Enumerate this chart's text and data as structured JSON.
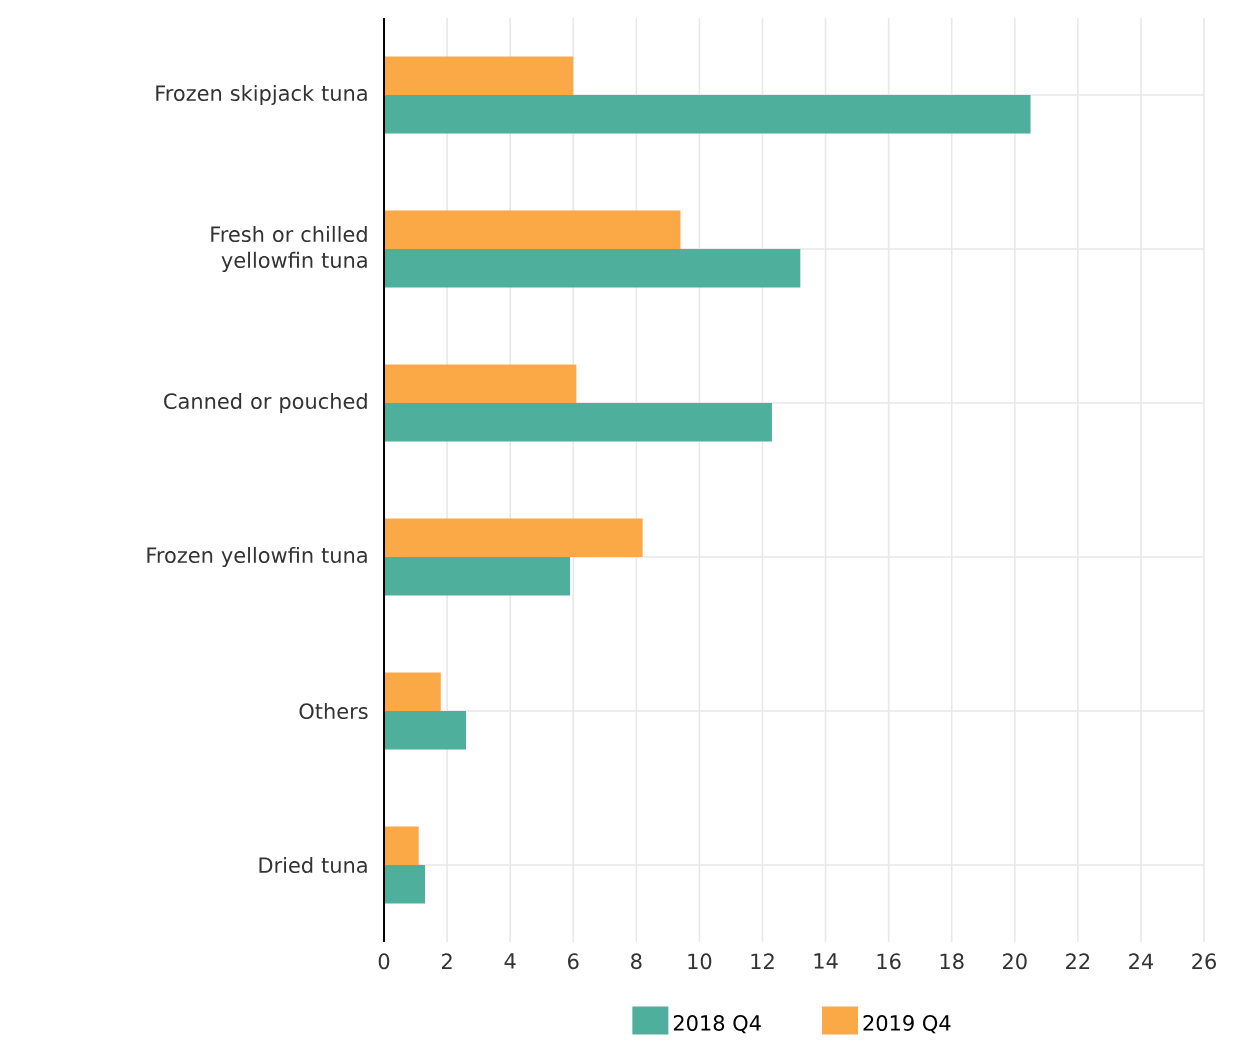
{
  "chart_data": {
    "type": "bar",
    "orientation": "horizontal",
    "categories": [
      "Frozen skipjack tuna",
      "Fresh or chilled yellowfin tuna",
      "Canned or pouched",
      "Frozen yellowfin tuna",
      "Others",
      "Dried tuna"
    ],
    "series": [
      {
        "name": "2018 Q4",
        "color": "#4daf9c",
        "values": [
          20.5,
          13.2,
          12.3,
          5.9,
          2.6,
          1.3
        ]
      },
      {
        "name": "2019 Q4",
        "color": "#fba847",
        "values": [
          6.0,
          9.4,
          6.1,
          8.2,
          1.8,
          1.1
        ]
      }
    ],
    "xlim": [
      0,
      26
    ],
    "xticks": [
      0,
      2,
      4,
      6,
      8,
      10,
      12,
      14,
      16,
      18,
      20,
      22,
      24,
      26
    ],
    "grid": true,
    "legend": "bottom"
  }
}
